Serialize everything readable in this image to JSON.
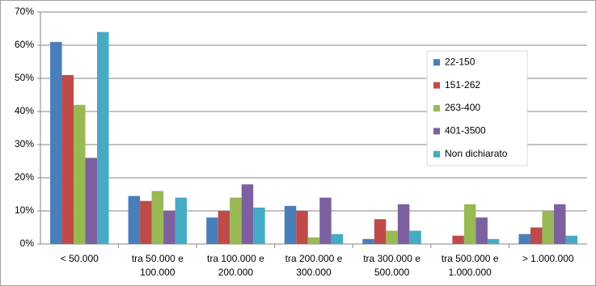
{
  "chart_data": {
    "type": "bar",
    "categories": [
      "< 50.000",
      "tra 50.000 e 100.000",
      "tra 100.000 e 200.000",
      "tra 200.000 e 300.000",
      "tra 300.000 e 500.000",
      "tra 500.000 e 1.000.000",
      "> 1.000.000"
    ],
    "series": [
      {
        "name": "22-150",
        "color": "#4a7ebb",
        "values": [
          61,
          14.5,
          8,
          11.5,
          1.5,
          0,
          3
        ]
      },
      {
        "name": "151-262",
        "color": "#be4b48",
        "values": [
          51,
          13,
          10,
          10,
          7.5,
          2.5,
          5
        ]
      },
      {
        "name": "263-400",
        "color": "#98b954",
        "values": [
          42,
          16,
          14,
          2,
          4,
          12,
          10
        ]
      },
      {
        "name": "401-3500",
        "color": "#7d60a0",
        "values": [
          26,
          10,
          18,
          14,
          12,
          8,
          12
        ]
      },
      {
        "name": "Non dichiarato",
        "color": "#46aac5",
        "values": [
          64,
          14,
          11,
          3,
          4,
          1.5,
          2.5
        ]
      }
    ],
    "ylim": [
      0,
      70
    ],
    "yticks": [
      {
        "value": 0,
        "label": "0%"
      },
      {
        "value": 10,
        "label": "10%"
      },
      {
        "value": 20,
        "label": "20%"
      },
      {
        "value": 30,
        "label": "30%"
      },
      {
        "value": 40,
        "label": "40%"
      },
      {
        "value": 50,
        "label": "50%"
      },
      {
        "value": 60,
        "label": "60%"
      },
      {
        "value": 70,
        "label": "70%"
      }
    ],
    "grid": true,
    "legend": "right"
  }
}
